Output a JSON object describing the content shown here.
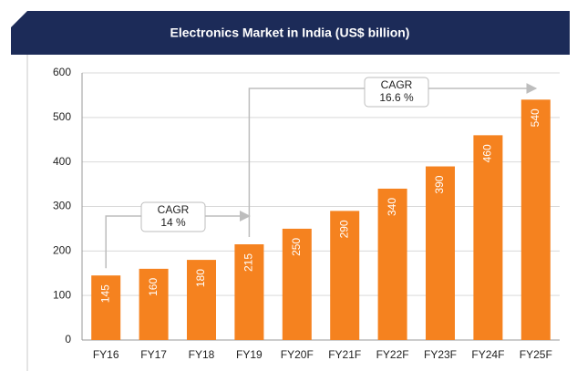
{
  "chart_data": {
    "type": "bar",
    "title": "Electronics Market in India (US$ billion)",
    "categories": [
      "FY16",
      "FY17",
      "FY18",
      "FY19",
      "FY20F",
      "FY21F",
      "FY22F",
      "FY23F",
      "FY24F",
      "FY25F"
    ],
    "values": [
      145,
      160,
      180,
      215,
      250,
      290,
      340,
      390,
      460,
      540
    ],
    "color": "#f5821f",
    "ylim": [
      0,
      600
    ],
    "yticks": [
      0,
      100,
      200,
      300,
      400,
      500,
      600
    ],
    "grid": true,
    "annotations": [
      {
        "lines": [
          "CAGR",
          "14 %"
        ]
      },
      {
        "lines": [
          "CAGR",
          "16.6 %"
        ]
      }
    ]
  }
}
